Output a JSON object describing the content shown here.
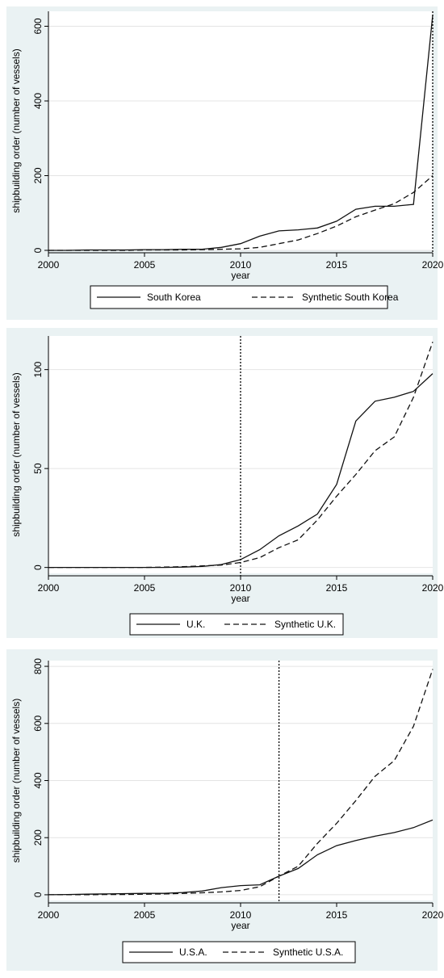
{
  "chart_data": [
    {
      "type": "line",
      "xlabel": "year",
      "ylabel": "shipbuilding order (number of vessels)",
      "xlim": [
        2000,
        2020
      ],
      "ylim": [
        0,
        640
      ],
      "xticks": [
        2000,
        2005,
        2010,
        2015,
        2020
      ],
      "yticks": [
        0,
        200,
        400,
        600
      ],
      "treatment_year": 2020,
      "legend_position": "bottom",
      "x": [
        2000,
        2001,
        2002,
        2003,
        2004,
        2005,
        2006,
        2007,
        2008,
        2009,
        2010,
        2011,
        2012,
        2013,
        2014,
        2015,
        2016,
        2017,
        2018,
        2019,
        2020
      ],
      "series": [
        {
          "name": "South Korea",
          "style": "solid",
          "values": [
            0,
            0,
            1,
            1,
            1,
            2,
            2,
            3,
            3,
            8,
            18,
            38,
            52,
            55,
            60,
            78,
            110,
            118,
            118,
            123,
            630
          ]
        },
        {
          "name": "Synthetic South Korea",
          "style": "dashed",
          "values": [
            0,
            0,
            0,
            0,
            0,
            1,
            1,
            1,
            2,
            3,
            4,
            8,
            18,
            28,
            45,
            65,
            90,
            108,
            125,
            155,
            200
          ]
        }
      ]
    },
    {
      "type": "line",
      "xlabel": "year",
      "ylabel": "shipbuilding order (number of vessels)",
      "xlim": [
        2000,
        2020
      ],
      "ylim": [
        -3,
        117
      ],
      "xticks": [
        2000,
        2005,
        2010,
        2015,
        2020
      ],
      "yticks": [
        0,
        50,
        100
      ],
      "treatment_year": 2010,
      "legend_position": "bottom",
      "x": [
        2000,
        2001,
        2002,
        2003,
        2004,
        2005,
        2006,
        2007,
        2008,
        2009,
        2010,
        2011,
        2012,
        2013,
        2014,
        2015,
        2016,
        2017,
        2018,
        2019,
        2020
      ],
      "series": [
        {
          "name": "U.K.",
          "style": "solid",
          "values": [
            0,
            0,
            0,
            0,
            0,
            0,
            0,
            0.2,
            0.5,
            1.5,
            4,
            9,
            16,
            21,
            27,
            42,
            74,
            84,
            86,
            89,
            98
          ]
        },
        {
          "name": "Synthetic U.K.",
          "style": "dashed",
          "values": [
            0,
            0,
            0,
            0,
            0,
            0,
            0.2,
            0.4,
            0.8,
            1.2,
            2.5,
            5,
            10,
            14,
            24,
            36,
            47,
            59,
            66,
            86,
            114
          ]
        }
      ]
    },
    {
      "type": "line",
      "xlabel": "year",
      "ylabel": "shipbuilding order (number of vessels)",
      "xlim": [
        2000,
        2020
      ],
      "ylim": [
        -20,
        820
      ],
      "xticks": [
        2000,
        2005,
        2010,
        2015,
        2020
      ],
      "yticks": [
        0,
        200,
        400,
        600,
        800
      ],
      "treatment_year": 2012,
      "legend_position": "bottom",
      "x": [
        2000,
        2001,
        2002,
        2003,
        2004,
        2005,
        2006,
        2007,
        2008,
        2009,
        2010,
        2011,
        2012,
        2013,
        2014,
        2015,
        2016,
        2017,
        2018,
        2019,
        2020
      ],
      "series": [
        {
          "name": "U.S.A.",
          "style": "solid",
          "values": [
            0,
            1,
            2,
            3,
            4,
            5,
            5,
            8,
            13,
            25,
            32,
            35,
            65,
            92,
            140,
            172,
            190,
            205,
            218,
            235,
            262
          ]
        },
        {
          "name": "Synthetic U.S.A.",
          "style": "dashed",
          "values": [
            0,
            0,
            0,
            1,
            1,
            2,
            3,
            5,
            7,
            10,
            15,
            28,
            65,
            100,
            180,
            250,
            330,
            415,
            470,
            590,
            790
          ]
        }
      ]
    }
  ]
}
